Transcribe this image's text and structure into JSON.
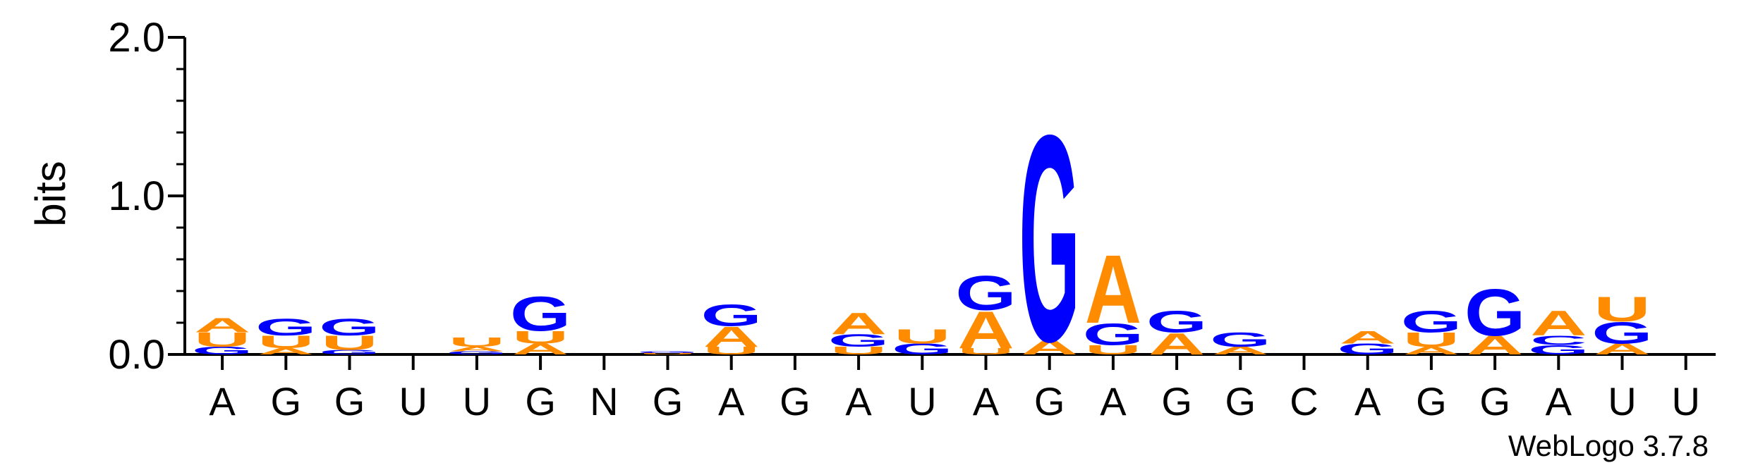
{
  "chart_data": {
    "type": "sequence-logo",
    "ylabel": "bits",
    "ylim": [
      0,
      2.0
    ],
    "y_ticks": [
      "0.0",
      "1.0",
      "2.0"
    ],
    "x_tick_labels": [
      "A",
      "G",
      "G",
      "U",
      "U",
      "G",
      "N",
      "G",
      "A",
      "G",
      "A",
      "U",
      "A",
      "G",
      "A",
      "G",
      "G",
      "C",
      "A",
      "G",
      "G",
      "A",
      "U",
      "U"
    ],
    "colors": {
      "A": "#ff8c00",
      "G": "#0000ff",
      "U": "#ff8c00",
      "C": "#0000ff"
    },
    "stacks": [
      [
        {
          "base": "G",
          "bits": 0.05
        },
        {
          "base": "U",
          "bits": 0.09
        },
        {
          "base": "A",
          "bits": 0.09
        }
      ],
      [
        {
          "base": "A",
          "bits": 0.04
        },
        {
          "base": "U",
          "bits": 0.08
        },
        {
          "base": "G",
          "bits": 0.11
        }
      ],
      [
        {
          "base": "G",
          "bits": 0.03
        },
        {
          "base": "U",
          "bits": 0.09
        },
        {
          "base": "G",
          "bits": 0.11
        }
      ],
      [],
      [
        {
          "base": "G",
          "bits": 0.02
        },
        {
          "base": "A",
          "bits": 0.03
        },
        {
          "base": "U",
          "bits": 0.06
        }
      ],
      [
        {
          "base": "A",
          "bits": 0.07
        },
        {
          "base": "U",
          "bits": 0.08
        },
        {
          "base": "G",
          "bits": 0.22
        }
      ],
      [],
      [
        {
          "base": "U",
          "bits": 0.01
        },
        {
          "base": "G",
          "bits": 0.01
        }
      ],
      [
        {
          "base": "U",
          "bits": 0.05
        },
        {
          "base": "A",
          "bits": 0.13
        },
        {
          "base": "G",
          "bits": 0.14
        }
      ],
      [],
      [
        {
          "base": "U",
          "bits": 0.05
        },
        {
          "base": "G",
          "bits": 0.08
        },
        {
          "base": "A",
          "bits": 0.14
        }
      ],
      [
        {
          "base": "G",
          "bits": 0.07
        },
        {
          "base": "U",
          "bits": 0.09
        }
      ],
      [
        {
          "base": "U",
          "bits": 0.04
        },
        {
          "base": "A",
          "bits": 0.24
        },
        {
          "base": "G",
          "bits": 0.22
        }
      ],
      [
        {
          "base": "A",
          "bits": 0.09
        },
        {
          "base": "G",
          "bits": 1.33
        }
      ],
      [
        {
          "base": "U",
          "bits": 0.06
        },
        {
          "base": "G",
          "bits": 0.14
        },
        {
          "base": "A",
          "bits": 0.44
        }
      ],
      [
        {
          "base": "A",
          "bits": 0.14
        },
        {
          "base": "G",
          "bits": 0.14
        }
      ],
      [
        {
          "base": "A",
          "bits": 0.05
        },
        {
          "base": "G",
          "bits": 0.09
        }
      ],
      [],
      [
        {
          "base": "G",
          "bits": 0.07
        },
        {
          "base": "A",
          "bits": 0.08
        }
      ],
      [
        {
          "base": "A",
          "bits": 0.05
        },
        {
          "base": "U",
          "bits": 0.09
        },
        {
          "base": "G",
          "bits": 0.14
        }
      ],
      [
        {
          "base": "A",
          "bits": 0.12
        },
        {
          "base": "G",
          "bits": 0.3
        }
      ],
      [
        {
          "base": "G",
          "bits": 0.06
        },
        {
          "base": "C",
          "bits": 0.06
        },
        {
          "base": "A",
          "bits": 0.16
        }
      ],
      [
        {
          "base": "A",
          "bits": 0.07
        },
        {
          "base": "G",
          "bits": 0.14
        },
        {
          "base": "U",
          "bits": 0.16
        }
      ],
      []
    ]
  },
  "credit": "WebLogo 3.7.8"
}
